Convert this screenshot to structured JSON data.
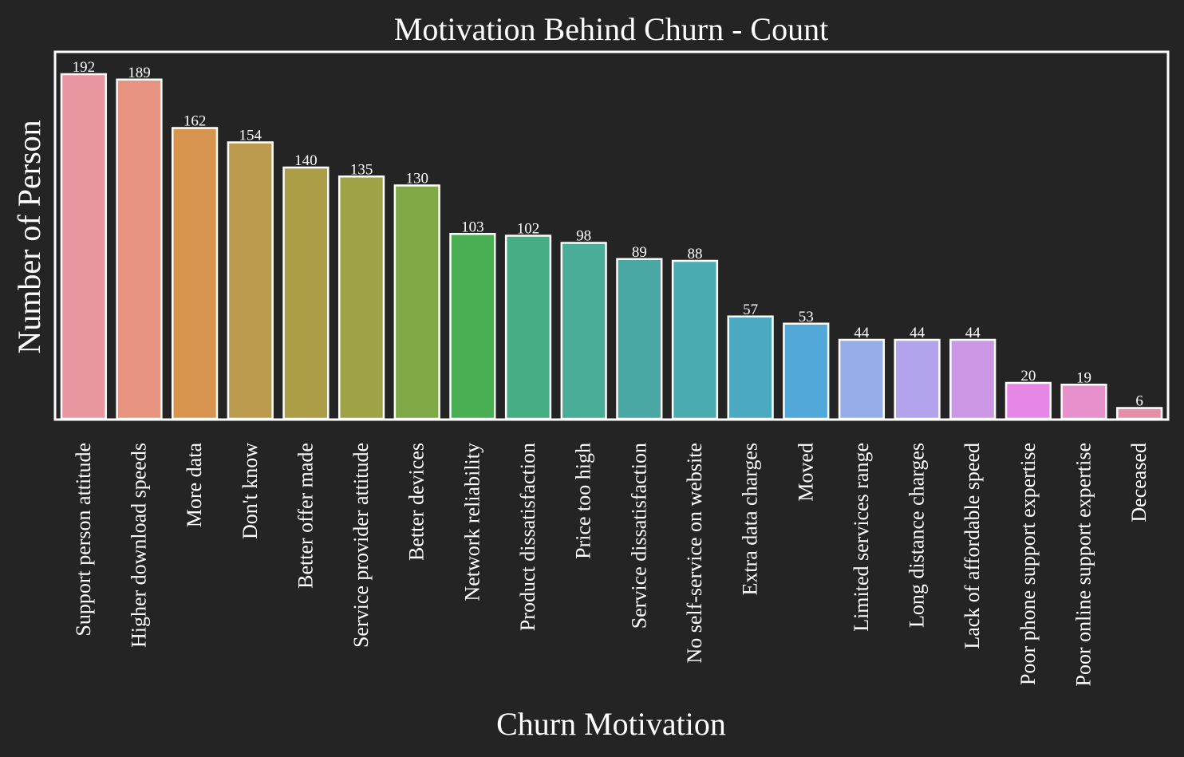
{
  "chart_data": {
    "type": "bar",
    "title": "Motivation Behind Churn - Count",
    "xlabel": "Churn Motivation",
    "ylabel": "Number of Person",
    "ylim": [
      0,
      204
    ],
    "grid": false,
    "legend": "none",
    "y_tick_labels_visible": false,
    "categories": [
      "Support person attitude",
      "Higher download speeds",
      "More data",
      "Don't know",
      "Better offer made",
      "Service provider attitude",
      "Better devices",
      "Network reliability",
      "Product dissatisfaction",
      "Price too high",
      "Service dissatisfaction",
      "No self-service on website",
      "Extra data charges",
      "Moved",
      "Limited services range",
      "Long distance charges",
      "Lack of affordable speed",
      "Poor phone support expertise",
      "Poor online support expertise",
      "Deceased"
    ],
    "values": [
      192,
      189,
      162,
      154,
      140,
      135,
      130,
      103,
      102,
      98,
      89,
      88,
      57,
      53,
      44,
      44,
      44,
      20,
      19,
      6
    ],
    "data_labels": [
      "192",
      "189",
      "162",
      "154",
      "140",
      "135",
      "130",
      "103",
      "102",
      "98",
      "89",
      "88",
      "57",
      "53",
      "44",
      "44",
      "44",
      "20",
      "19",
      "6"
    ],
    "colors": [
      "#e8969f",
      "#e6947f",
      "#d6944e",
      "#bc9b4e",
      "#ab9e47",
      "#9ea446",
      "#7fa947",
      "#4aaf53",
      "#47ad84",
      "#49ad97",
      "#49a8a3",
      "#4aabb0",
      "#4ba9c0",
      "#52a9d9",
      "#95aeea",
      "#b2a3ec",
      "#cb97e4",
      "#e687e7",
      "#e690cc",
      "#e48ea8"
    ],
    "background_color": "#242424",
    "foreground_color": "#ffffff",
    "bar_edge_color": "#ffffff"
  }
}
